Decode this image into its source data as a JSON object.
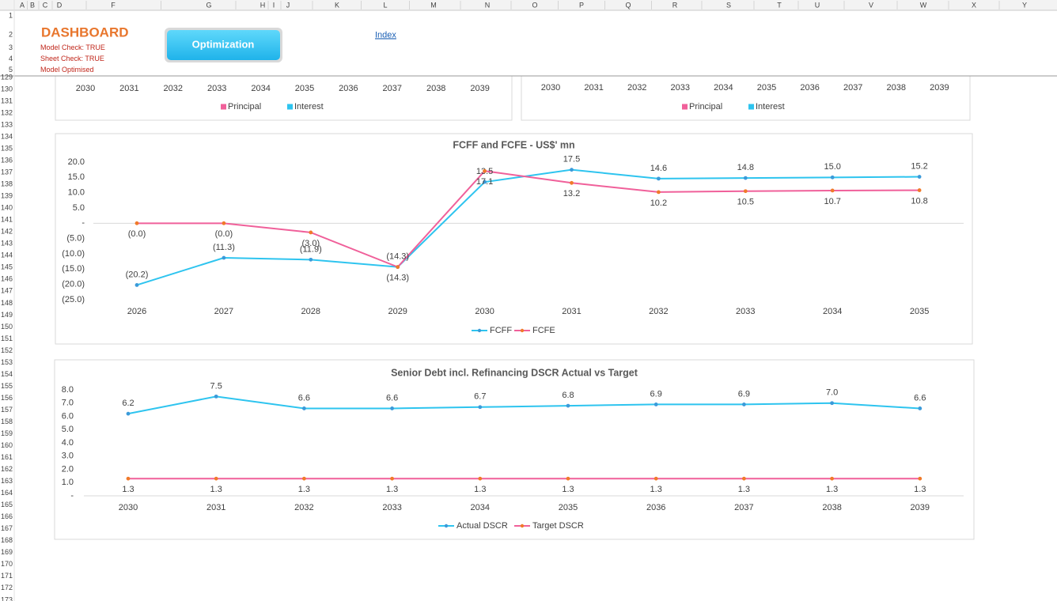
{
  "sheet": {
    "columns": [
      "A",
      "B",
      "C",
      "D",
      "F",
      "G",
      "H",
      "I",
      "J",
      "K",
      "L",
      "M",
      "N",
      "O",
      "P",
      "Q",
      "R",
      "S",
      "T",
      "U",
      "V",
      "W",
      "X",
      "Y"
    ],
    "rows": [
      "1",
      "2",
      "3",
      "4",
      "5",
      "129",
      "130",
      "131",
      "132",
      "133",
      "134",
      "135",
      "136",
      "137",
      "138",
      "139",
      "140",
      "141",
      "142",
      "143",
      "144",
      "145",
      "146",
      "147",
      "148",
      "149",
      "150",
      "151",
      "152",
      "153",
      "154",
      "155",
      "156",
      "157",
      "158",
      "159",
      "160",
      "161",
      "162",
      "163",
      "164",
      "165",
      "166",
      "167",
      "168",
      "169",
      "170",
      "171",
      "172",
      "173"
    ]
  },
  "header": {
    "title": "DASHBOARD",
    "checks": [
      "Model Check: TRUE",
      "Sheet Check: TRUE",
      "Model Optimised"
    ],
    "button": "Optimization",
    "link": "Index"
  },
  "chart_data": [
    {
      "type": "bar",
      "categories": [
        "2030",
        "2031",
        "2032",
        "2033",
        "2034",
        "2035",
        "2036",
        "2037",
        "2038",
        "2039"
      ],
      "series": [
        {
          "name": "Principal",
          "color": "#f0609a"
        },
        {
          "name": "Interest",
          "color": "#2ec4ef"
        }
      ]
    },
    {
      "type": "bar",
      "categories": [
        "2030",
        "2031",
        "2032",
        "2033",
        "2034",
        "2035",
        "2036",
        "2037",
        "2038",
        "2039"
      ],
      "series": [
        {
          "name": "Principal",
          "color": "#f0609a"
        },
        {
          "name": "Interest",
          "color": "#2ec4ef"
        }
      ]
    },
    {
      "type": "line",
      "title": "FCFF and FCFE - US$' mn",
      "categories": [
        "2026",
        "2027",
        "2028",
        "2029",
        "2030",
        "2031",
        "2032",
        "2033",
        "2034",
        "2035"
      ],
      "series": [
        {
          "name": "FCFF",
          "color": "#2ec4ef",
          "marker_color": "#3b9ad9",
          "values": [
            -20.2,
            -11.3,
            -11.9,
            -14.3,
            13.5,
            17.5,
            14.6,
            14.8,
            15.0,
            15.2
          ],
          "value_labels": [
            "(20.2)",
            "(11.3)",
            "(11.9)",
            "(14.3)",
            "13.5",
            "17.5",
            "14.6",
            "14.8",
            "15.0",
            "15.2"
          ]
        },
        {
          "name": "FCFE",
          "color": "#f0609a",
          "marker_color": "#f07a2a",
          "values": [
            0,
            0,
            -3.0,
            -14.3,
            17.1,
            13.2,
            10.2,
            10.5,
            10.7,
            10.8
          ],
          "value_labels": [
            "(0.0)",
            "(0.0)",
            "(3.0)",
            "(14.3)",
            "17.1",
            "13.2",
            "10.2",
            "10.5",
            "10.7",
            "10.8"
          ]
        }
      ],
      "ylim": [
        -25,
        20
      ],
      "yticks": [
        {
          "value": 20,
          "label": "20.0"
        },
        {
          "value": 15,
          "label": "15.0"
        },
        {
          "value": 10,
          "label": "10.0"
        },
        {
          "value": 5,
          "label": "5.0"
        },
        {
          "value": 0,
          "label": "-"
        },
        {
          "value": -5,
          "label": "(5.0)"
        },
        {
          "value": -10,
          "label": "(10.0)"
        },
        {
          "value": -15,
          "label": "(15.0)"
        },
        {
          "value": -20,
          "label": "(20.0)"
        },
        {
          "value": -25,
          "label": "(25.0)"
        }
      ]
    },
    {
      "type": "line",
      "title": "Senior Debt incl. Refinancing DSCR Actual vs Target",
      "categories": [
        "2030",
        "2031",
        "2032",
        "2033",
        "2034",
        "2035",
        "2036",
        "2037",
        "2038",
        "2039"
      ],
      "series": [
        {
          "name": "Actual DSCR",
          "color": "#2ec4ef",
          "marker_color": "#3b9ad9",
          "values": [
            6.2,
            7.5,
            6.6,
            6.6,
            6.7,
            6.8,
            6.9,
            6.9,
            7.0,
            6.6
          ],
          "value_labels": [
            "6.2",
            "7.5",
            "6.6",
            "6.6",
            "6.7",
            "6.8",
            "6.9",
            "6.9",
            "7.0",
            "6.6"
          ]
        },
        {
          "name": "Target DSCR",
          "color": "#f0609a",
          "marker_color": "#f07a2a",
          "values": [
            1.3,
            1.3,
            1.3,
            1.3,
            1.3,
            1.3,
            1.3,
            1.3,
            1.3,
            1.3
          ],
          "value_labels": [
            "1.3",
            "1.3",
            "1.3",
            "1.3",
            "1.3",
            "1.3",
            "1.3",
            "1.3",
            "1.3",
            "1.3"
          ]
        }
      ],
      "ylim": [
        0,
        8
      ],
      "yticks": [
        {
          "value": 8,
          "label": "8.0"
        },
        {
          "value": 7,
          "label": "7.0"
        },
        {
          "value": 6,
          "label": "6.0"
        },
        {
          "value": 5,
          "label": "5.0"
        },
        {
          "value": 4,
          "label": "4.0"
        },
        {
          "value": 3,
          "label": "3.0"
        },
        {
          "value": 2,
          "label": "2.0"
        },
        {
          "value": 1,
          "label": "1.0"
        },
        {
          "value": 0,
          "label": "-"
        }
      ]
    }
  ]
}
